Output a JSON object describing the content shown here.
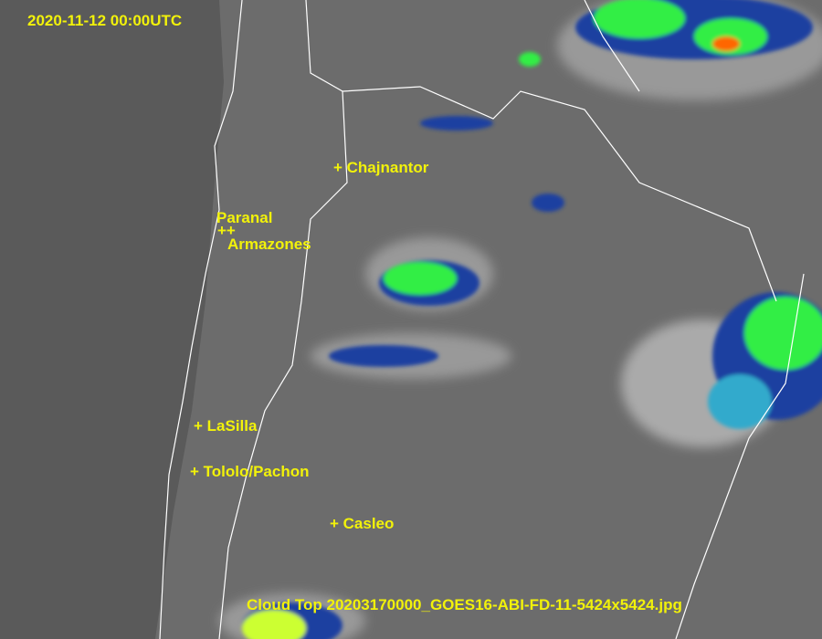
{
  "timestamp": "2020-11-12 00:00UTC",
  "caption": "Cloud Top 20203170000_GOES16-ABI-FD-11-5424x5424.jpg",
  "sites": {
    "chajnantor": "+ Chajnantor",
    "paranal": "Paranal",
    "plus_marks": "++",
    "armazones": "Armazones",
    "lasilla": "+ LaSilla",
    "tololo": "+ Tololo/Pachon",
    "casleo": "+ Casleo"
  },
  "colors": {
    "label": "#f2f20a",
    "ocean": "#5a5a5a",
    "land": "#6e6e6e",
    "border": "#ffffff",
    "cold_cloud": "#33ff33",
    "coldest": "#ff3300"
  }
}
